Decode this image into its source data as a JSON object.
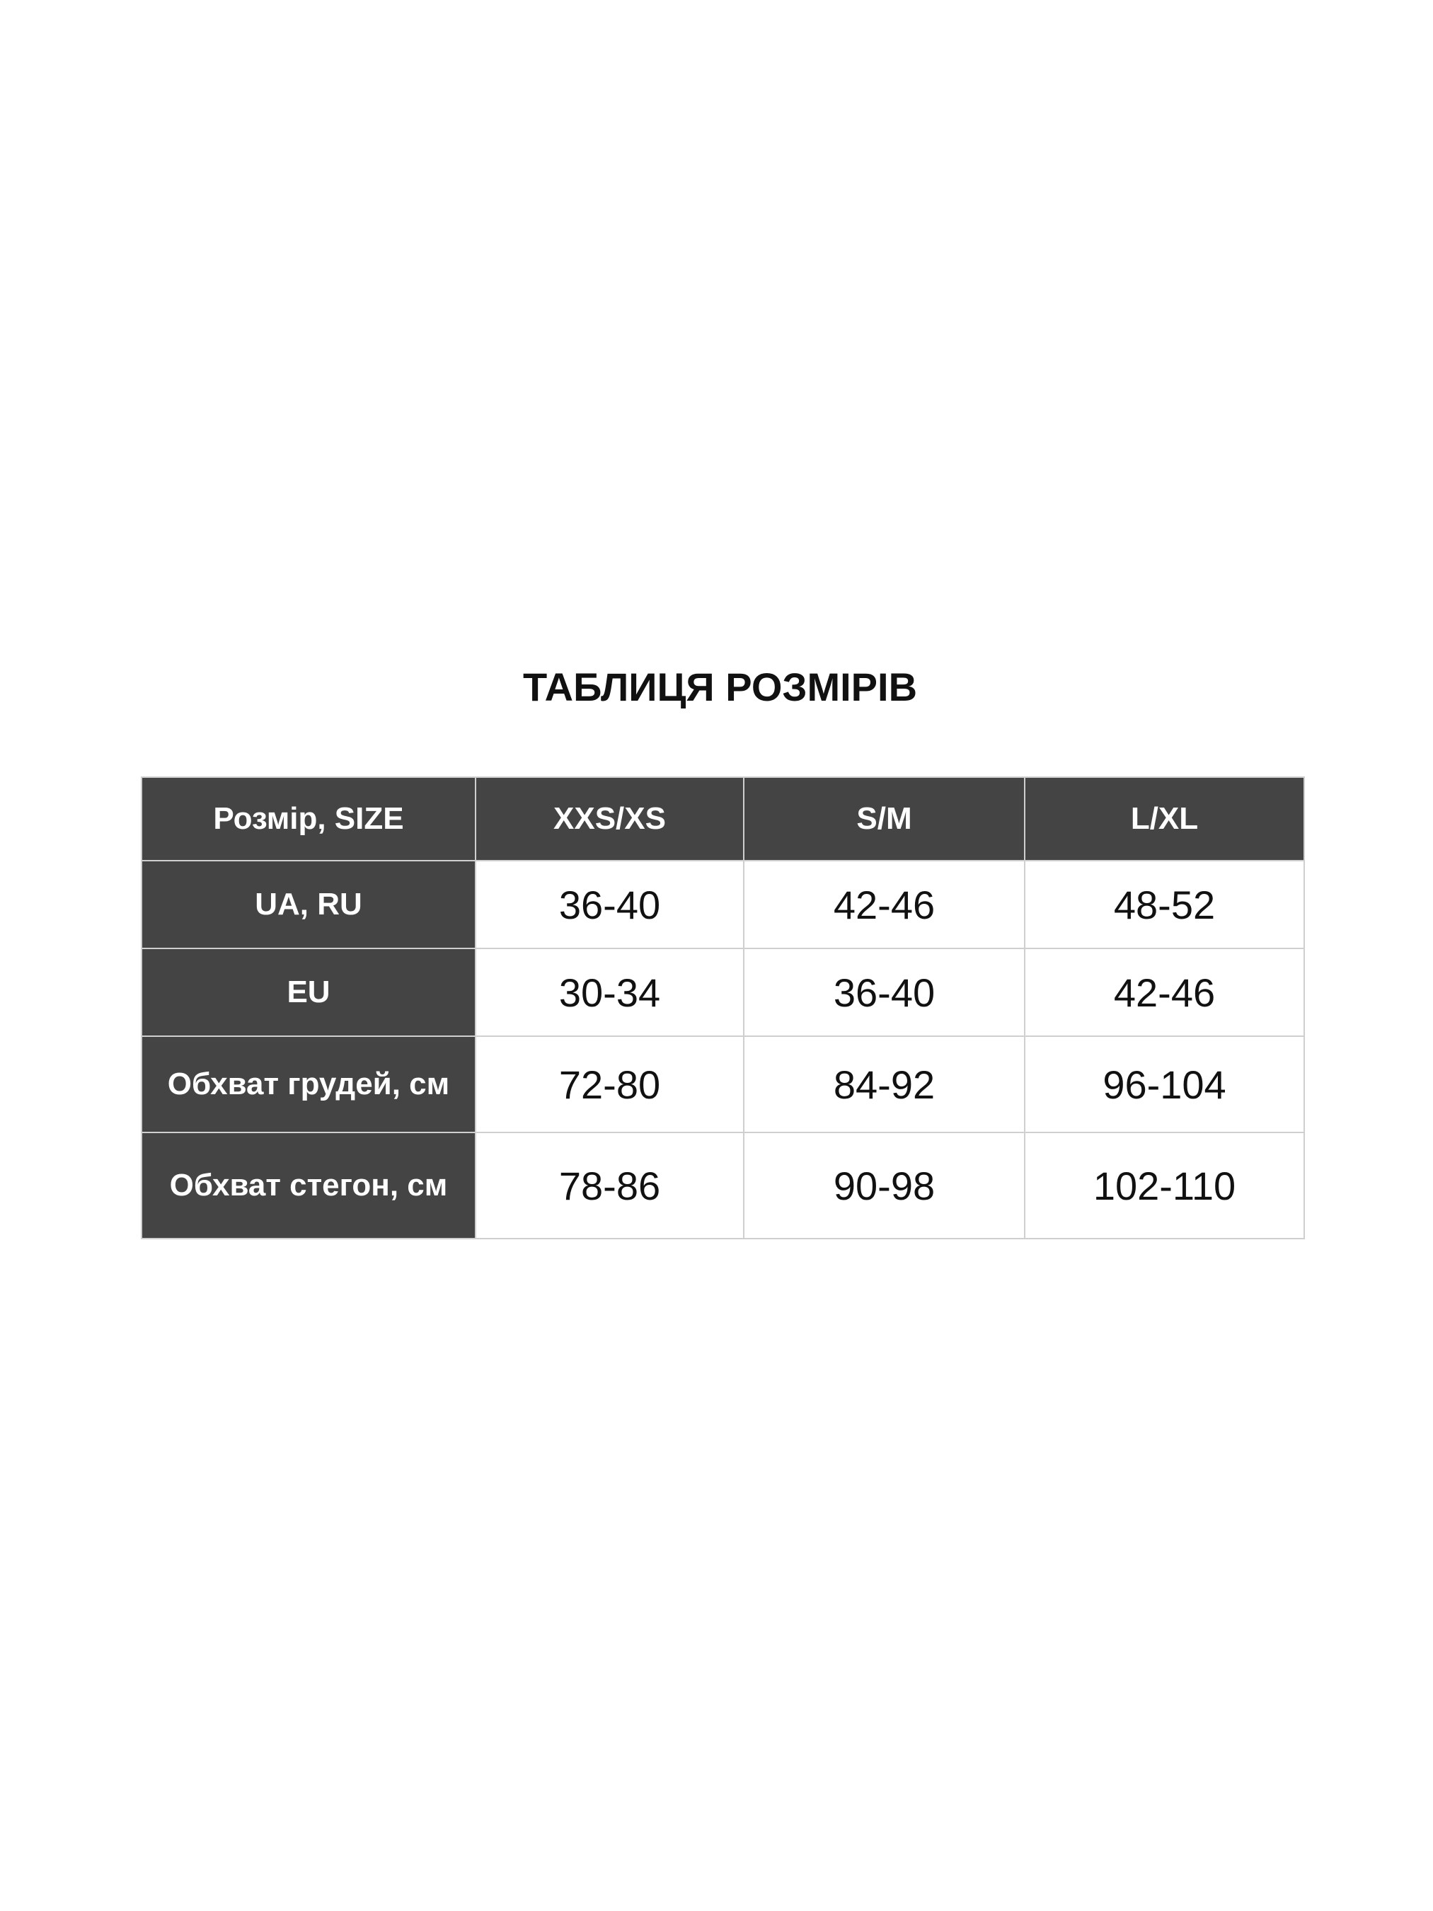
{
  "title": "ТАБЛИЦЯ РОЗМІРІВ",
  "colors": {
    "header_bg": "#444444",
    "header_text": "#ffffff",
    "cell_bg": "#ffffff"
  },
  "table": {
    "header": [
      "Розмір, SIZE",
      "XXS/XS",
      "S/M",
      "L/XL"
    ],
    "rows": [
      {
        "label": "UA, RU",
        "values": [
          "36-40",
          "42-46",
          "48-52"
        ]
      },
      {
        "label": "EU",
        "values": [
          "30-34",
          "36-40",
          "42-46"
        ]
      },
      {
        "label": "Обхват грудей, см",
        "values": [
          "72-80",
          "84-92",
          "96-104"
        ]
      },
      {
        "label": "Обхват стегон, см",
        "values": [
          "78-86",
          "90-98",
          "102-110"
        ]
      }
    ]
  }
}
